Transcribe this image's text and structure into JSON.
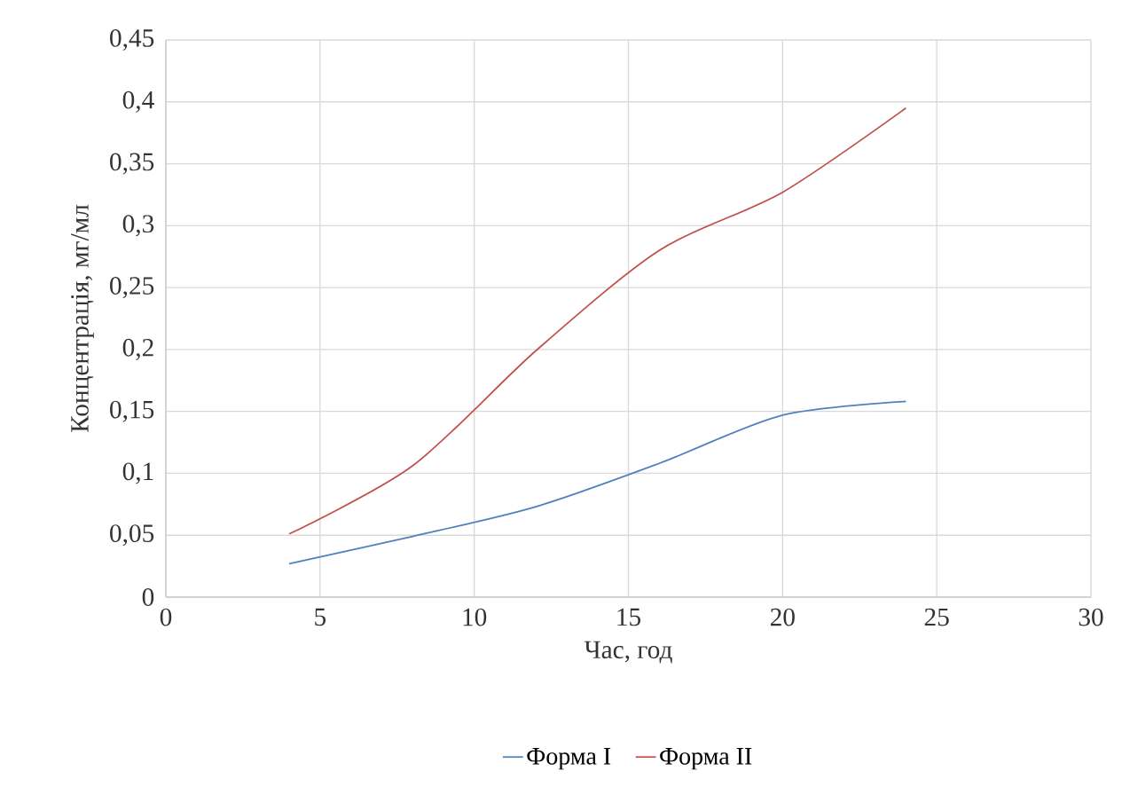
{
  "chart_data": {
    "type": "line",
    "xlabel": "Час, год",
    "ylabel": "Концентрація, мг/мл",
    "x": [
      4,
      8,
      12,
      16,
      20,
      24
    ],
    "series": [
      {
        "name": "Форма I",
        "color": "#4f81bd",
        "values": [
          0.027,
          0.049,
          0.073,
          0.108,
          0.147,
          0.158
        ]
      },
      {
        "name": "Форма II",
        "color": "#c0504d",
        "values": [
          0.051,
          0.106,
          0.199,
          0.28,
          0.327,
          0.395
        ]
      }
    ],
    "xlim": [
      0,
      30
    ],
    "xticks": [
      0,
      5,
      10,
      15,
      20,
      25,
      30
    ],
    "ylim": [
      0,
      0.45
    ],
    "yticks": [
      {
        "value": 0,
        "label": "0"
      },
      {
        "value": 0.05,
        "label": "0,05"
      },
      {
        "value": 0.1,
        "label": "0,1"
      },
      {
        "value": 0.15,
        "label": "0,15"
      },
      {
        "value": 0.2,
        "label": "0,2"
      },
      {
        "value": 0.25,
        "label": "0,25"
      },
      {
        "value": 0.3,
        "label": "0,3"
      },
      {
        "value": 0.35,
        "label": "0,35"
      },
      {
        "value": 0.4,
        "label": "0,4"
      },
      {
        "value": 0.45,
        "label": "0,45"
      }
    ],
    "grid": true,
    "legend": "bottom",
    "marker": "none",
    "line_style": "solid"
  }
}
